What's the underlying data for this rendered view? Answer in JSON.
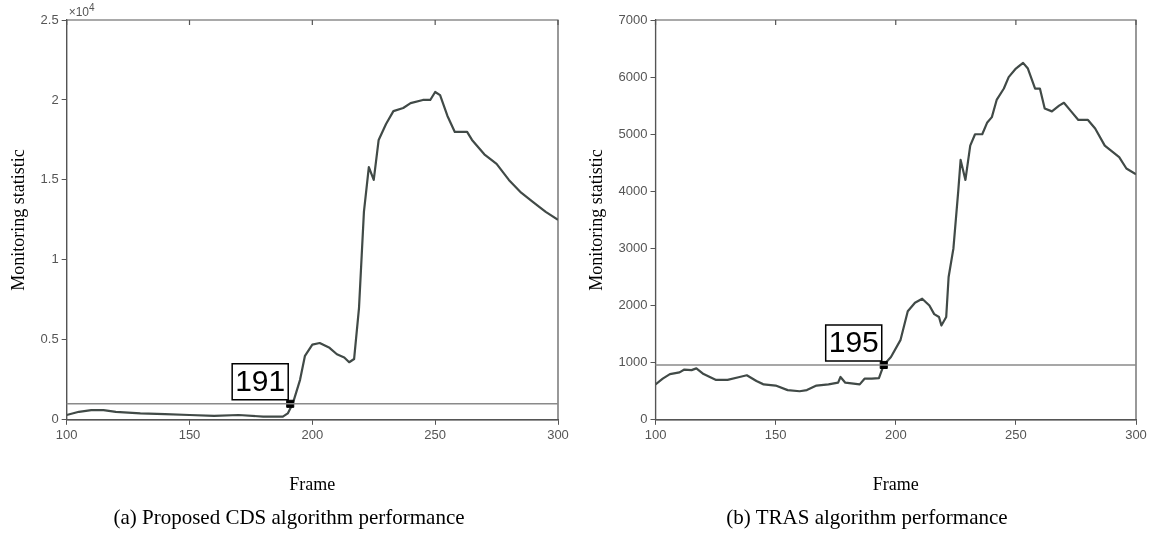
{
  "chart_data": [
    {
      "type": "line",
      "xlabel": "Frame",
      "ylabel": "Monitoring statistic",
      "xlim": [
        100,
        300
      ],
      "xticks": [
        100,
        150,
        200,
        250,
        300
      ],
      "ylim": [
        0,
        2.5
      ],
      "yticks": [
        0,
        0.5,
        1,
        1.5,
        2,
        2.5
      ],
      "grid": false,
      "legend": false,
      "marker": "none",
      "line_style": "solid",
      "series": [
        {
          "color": "#414a47",
          "x": [
            100,
            105,
            110,
            115,
            120,
            130,
            140,
            150,
            160,
            170,
            180,
            188,
            190,
            192,
            195,
            197,
            200,
            203,
            207,
            210,
            213,
            215,
            217,
            219,
            221,
            223,
            225,
            227,
            230,
            233,
            237,
            240,
            245,
            248,
            250,
            252,
            255,
            258,
            263,
            265,
            270,
            275,
            280,
            285,
            290,
            295,
            300
          ],
          "values": [
            0.03,
            0.05,
            0.06,
            0.06,
            0.05,
            0.04,
            0.035,
            0.03,
            0.025,
            0.03,
            0.02,
            0.02,
            0.04,
            0.1,
            0.25,
            0.4,
            0.47,
            0.48,
            0.45,
            0.41,
            0.39,
            0.36,
            0.38,
            0.7,
            1.3,
            1.58,
            1.5,
            1.75,
            1.85,
            1.93,
            1.95,
            1.98,
            2.0,
            2.0,
            2.05,
            2.03,
            1.9,
            1.8,
            1.8,
            1.75,
            1.66,
            1.6,
            1.5,
            1.42,
            1.36,
            1.3,
            1.25
          ]
        },
        {
          "type": "scatter",
          "marker": "square",
          "color": "#000000",
          "x": [
            191
          ],
          "values": [
            0.1
          ]
        }
      ],
      "ref_lines": [
        {
          "axis": "y",
          "value": 0.1,
          "color": "#8a8a8a"
        }
      ],
      "annotations": [
        {
          "text": "191",
          "x": 191,
          "y": 0.1
        },
        "×10$^{4}$",
        "(a) Proposed CDS algorithm performance"
      ]
    },
    {
      "type": "line",
      "xlabel": "Frame",
      "ylabel": "Monitoring statistic",
      "xlim": [
        100,
        300
      ],
      "xticks": [
        100,
        150,
        200,
        250,
        300
      ],
      "ylim": [
        0,
        7000
      ],
      "yticks": [
        0,
        1000,
        2000,
        3000,
        4000,
        5000,
        6000,
        7000
      ],
      "grid": false,
      "legend": false,
      "marker": "none",
      "line_style": "solid",
      "series": [
        {
          "color": "#414a47",
          "x": [
            100,
            103,
            106,
            110,
            112,
            115,
            117,
            120,
            125,
            130,
            135,
            138,
            142,
            145,
            150,
            155,
            160,
            163,
            167,
            172,
            176,
            177,
            179,
            185,
            187,
            190,
            193,
            195,
            198,
            202,
            205,
            208,
            211,
            214,
            216,
            218,
            219,
            221,
            222,
            224,
            226,
            227,
            229,
            231,
            233,
            236,
            238,
            240,
            242,
            245,
            247,
            250,
            253,
            255,
            258,
            260,
            262,
            265,
            268,
            270,
            273,
            276,
            280,
            283,
            287,
            290,
            293,
            296,
            300
          ],
          "values": [
            620,
            720,
            800,
            830,
            880,
            870,
            900,
            800,
            700,
            700,
            750,
            780,
            680,
            620,
            600,
            520,
            500,
            520,
            600,
            620,
            650,
            750,
            650,
            620,
            720,
            720,
            730,
            960,
            1100,
            1400,
            1900,
            2050,
            2120,
            2000,
            1850,
            1800,
            1650,
            1800,
            2500,
            3000,
            4000,
            4550,
            4200,
            4800,
            5000,
            5000,
            5200,
            5300,
            5600,
            5800,
            6000,
            6150,
            6250,
            6150,
            5800,
            5800,
            5450,
            5400,
            5500,
            5550,
            5400,
            5250,
            5250,
            5100,
            4800,
            4700,
            4600,
            4400,
            4300
          ]
        },
        {
          "type": "scatter",
          "marker": "square",
          "color": "#000000",
          "x": [
            195
          ],
          "values": [
            960
          ]
        }
      ],
      "ref_lines": [
        {
          "axis": "y",
          "value": 960,
          "color": "#8a8a8a"
        }
      ],
      "annotations": [
        {
          "text": "195",
          "x": 195,
          "y": 960
        },
        "(b) TRAS algorithm performance"
      ]
    }
  ]
}
